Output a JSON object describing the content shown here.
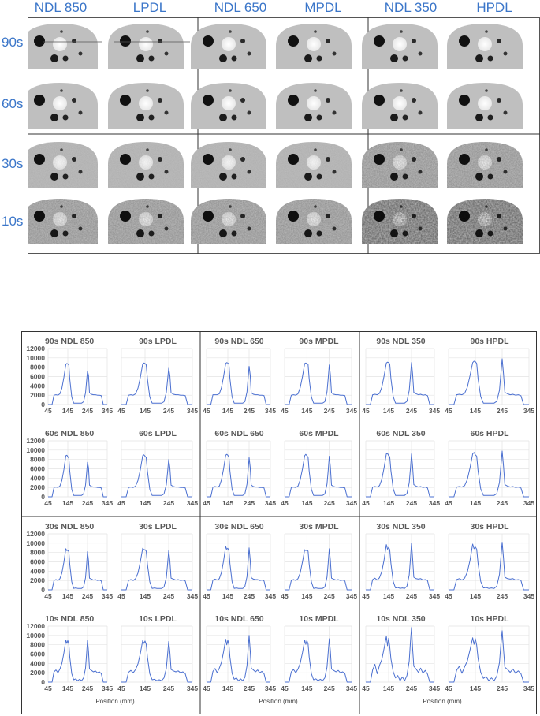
{
  "phantom_panel": {
    "columns": [
      "NDL 850",
      "LPDL",
      "NDL 650",
      "MPDL",
      "NDL 350",
      "HPDL"
    ],
    "rows": [
      "90s",
      "60s",
      "30s",
      "10s"
    ]
  },
  "chart_data": {
    "type": "line",
    "x_ticks": [
      "45",
      "145",
      "245",
      "345"
    ],
    "y_ticks": [
      "0",
      "2000",
      "4000",
      "6000",
      "8000",
      "10000",
      "12000"
    ],
    "xlabel": "Position (mm)",
    "ylim": [
      0,
      12000
    ],
    "xlim": [
      45,
      345
    ],
    "x": [
      45,
      55,
      65,
      75,
      85,
      95,
      105,
      115,
      125,
      135,
      140,
      145,
      150,
      155,
      165,
      175,
      185,
      195,
      205,
      215,
      225,
      235,
      240,
      245,
      250,
      255,
      265,
      275,
      285,
      295,
      305,
      315,
      325,
      335,
      345
    ],
    "panels": [
      {
        "title": "90s NDL 850",
        "values": [
          0,
          0,
          0,
          2000,
          2100,
          2000,
          2300,
          3500,
          5800,
          8600,
          8800,
          8700,
          8500,
          5500,
          1600,
          300,
          300,
          300,
          300,
          300,
          600,
          2500,
          5000,
          7200,
          6200,
          2500,
          2200,
          2100,
          2100,
          2000,
          2000,
          1900,
          0,
          0,
          0
        ]
      },
      {
        "title": "90s LPDL",
        "values": [
          0,
          0,
          0,
          2000,
          2100,
          2000,
          2300,
          3500,
          5800,
          8700,
          8900,
          8800,
          8500,
          5500,
          1600,
          300,
          300,
          300,
          300,
          300,
          600,
          2600,
          5200,
          7800,
          6200,
          2500,
          2200,
          2100,
          2100,
          2000,
          2000,
          1900,
          0,
          0,
          0
        ]
      },
      {
        "title": "90s NDL 650",
        "values": [
          0,
          0,
          0,
          2100,
          2100,
          2100,
          2300,
          3600,
          6000,
          8800,
          9000,
          8900,
          8600,
          5500,
          1600,
          300,
          300,
          300,
          300,
          300,
          600,
          2700,
          5400,
          8200,
          6300,
          2500,
          2200,
          2100,
          2100,
          2000,
          2000,
          1900,
          0,
          0,
          0
        ]
      },
      {
        "title": "90s MPDL",
        "values": [
          0,
          0,
          0,
          2000,
          2100,
          2000,
          2300,
          3600,
          6000,
          8800,
          8900,
          8800,
          8600,
          5500,
          1600,
          300,
          300,
          300,
          300,
          300,
          600,
          2700,
          5600,
          8500,
          6400,
          2500,
          2200,
          2100,
          2100,
          2000,
          2000,
          1900,
          0,
          0,
          0
        ]
      },
      {
        "title": "90s NDL 350",
        "values": [
          0,
          0,
          0,
          2100,
          2200,
          2100,
          2400,
          3700,
          6100,
          8900,
          9100,
          9000,
          8700,
          5600,
          1700,
          300,
          300,
          300,
          300,
          300,
          700,
          3000,
          6000,
          9000,
          6500,
          2600,
          2300,
          2100,
          2200,
          2000,
          2100,
          1900,
          0,
          0,
          0
        ]
      },
      {
        "title": "90s HPDL",
        "values": [
          0,
          0,
          0,
          2100,
          2200,
          2100,
          2400,
          3700,
          6200,
          9000,
          9300,
          9200,
          8800,
          5600,
          1700,
          300,
          300,
          300,
          300,
          300,
          700,
          3100,
          6500,
          9800,
          6600,
          2600,
          2300,
          2100,
          2200,
          2000,
          2100,
          1900,
          0,
          0,
          0
        ]
      },
      {
        "title": "60s NDL 850",
        "values": [
          0,
          0,
          0,
          2000,
          2100,
          2000,
          2300,
          3500,
          5800,
          8800,
          8900,
          8600,
          8300,
          5500,
          1600,
          300,
          300,
          300,
          300,
          300,
          600,
          2500,
          5000,
          7400,
          6200,
          2500,
          2200,
          2100,
          2100,
          2000,
          2000,
          1900,
          0,
          0,
          0
        ]
      },
      {
        "title": "60s LPDL",
        "values": [
          0,
          0,
          0,
          2000,
          2100,
          2000,
          2300,
          3500,
          5800,
          8800,
          9000,
          8700,
          8400,
          5500,
          1600,
          300,
          300,
          300,
          300,
          300,
          600,
          2600,
          5200,
          8000,
          6200,
          2500,
          2200,
          2100,
          2100,
          2000,
          2000,
          1900,
          0,
          0,
          0
        ]
      },
      {
        "title": "60s NDL 650",
        "values": [
          0,
          0,
          0,
          2100,
          2200,
          2100,
          2300,
          3600,
          6000,
          8900,
          9100,
          8900,
          8500,
          5500,
          1600,
          300,
          300,
          300,
          300,
          300,
          600,
          2700,
          5400,
          8400,
          6300,
          2500,
          2200,
          2100,
          2100,
          2000,
          2000,
          1900,
          0,
          0,
          0
        ]
      },
      {
        "title": "60s MPDL",
        "values": [
          0,
          0,
          0,
          2000,
          2100,
          2000,
          2300,
          3600,
          6000,
          8800,
          9100,
          8800,
          8500,
          5500,
          1600,
          300,
          300,
          300,
          300,
          300,
          600,
          2700,
          5600,
          8700,
          6400,
          2500,
          2200,
          2100,
          2100,
          2000,
          2000,
          1900,
          0,
          0,
          0
        ]
      },
      {
        "title": "60s NDL 350",
        "values": [
          0,
          0,
          0,
          2100,
          2200,
          2100,
          2400,
          3700,
          6200,
          9200,
          9300,
          8800,
          8600,
          5600,
          1700,
          300,
          300,
          300,
          300,
          300,
          700,
          3000,
          6000,
          9200,
          6500,
          2600,
          2300,
          2100,
          2200,
          2000,
          2100,
          1900,
          0,
          0,
          0
        ]
      },
      {
        "title": "60s HPDL",
        "values": [
          0,
          0,
          0,
          2100,
          2200,
          2100,
          2400,
          3700,
          6200,
          9200,
          9500,
          9000,
          8700,
          5600,
          1700,
          300,
          300,
          300,
          300,
          300,
          700,
          3100,
          6500,
          9800,
          6600,
          2600,
          2300,
          2100,
          2200,
          2000,
          2100,
          1900,
          0,
          0,
          0
        ]
      },
      {
        "title": "30s NDL 850",
        "values": [
          0,
          0,
          0,
          2000,
          2200,
          2000,
          2400,
          3600,
          5900,
          8800,
          8400,
          8500,
          8200,
          5500,
          1700,
          300,
          400,
          300,
          300,
          300,
          600,
          2600,
          5300,
          8200,
          6200,
          2500,
          2300,
          2100,
          2200,
          2000,
          2100,
          1900,
          0,
          0,
          0
        ]
      },
      {
        "title": "30s LPDL",
        "values": [
          0,
          0,
          0,
          2000,
          2200,
          2000,
          2400,
          3600,
          6000,
          8900,
          8600,
          8600,
          8300,
          5500,
          1700,
          300,
          400,
          300,
          300,
          300,
          600,
          2600,
          5400,
          8400,
          6200,
          2500,
          2300,
          2100,
          2200,
          2000,
          2100,
          1900,
          0,
          0,
          0
        ]
      },
      {
        "title": "30s NDL 650",
        "values": [
          0,
          0,
          0,
          2100,
          2300,
          2100,
          2400,
          3700,
          6200,
          9300,
          8700,
          8900,
          8400,
          5600,
          1700,
          300,
          400,
          300,
          300,
          300,
          700,
          2800,
          5800,
          9000,
          6400,
          2600,
          2300,
          2200,
          2200,
          2000,
          2100,
          1900,
          0,
          0,
          0
        ]
      },
      {
        "title": "30s MPDL",
        "values": [
          0,
          0,
          0,
          2000,
          2200,
          2000,
          2400,
          3600,
          6000,
          8600,
          8400,
          8500,
          8300,
          5500,
          1700,
          300,
          400,
          300,
          300,
          300,
          600,
          2700,
          5700,
          8800,
          6300,
          2500,
          2300,
          2100,
          2200,
          2000,
          2100,
          1900,
          0,
          0,
          0
        ]
      },
      {
        "title": "30s NDL 350",
        "values": [
          0,
          0,
          0,
          2200,
          2500,
          2100,
          2600,
          3900,
          6400,
          9700,
          8700,
          9100,
          8600,
          5700,
          1800,
          400,
          500,
          300,
          400,
          300,
          800,
          3200,
          6500,
          10000,
          6700,
          2700,
          2400,
          2300,
          2400,
          2100,
          2200,
          2000,
          0,
          0,
          0
        ]
      },
      {
        "title": "30s HPDL",
        "values": [
          0,
          0,
          0,
          2200,
          2400,
          2100,
          2500,
          3800,
          6300,
          9800,
          8800,
          9200,
          8700,
          5700,
          1800,
          400,
          500,
          300,
          400,
          300,
          800,
          3300,
          6800,
          10200,
          6800,
          2700,
          2400,
          2300,
          2400,
          2100,
          2200,
          2000,
          0,
          0,
          0
        ]
      },
      {
        "title": "10s NDL 850",
        "values": [
          0,
          0,
          0,
          2200,
          2600,
          2000,
          2800,
          4000,
          6200,
          9000,
          8300,
          8900,
          8200,
          5400,
          1800,
          500,
          700,
          300,
          600,
          300,
          900,
          3000,
          6000,
          9000,
          6500,
          2800,
          2500,
          2200,
          2400,
          2000,
          2200,
          1800,
          0,
          0,
          0
        ]
      },
      {
        "title": "10s LPDL",
        "values": [
          0,
          0,
          0,
          2100,
          2500,
          2000,
          2700,
          3900,
          6100,
          8900,
          8300,
          8800,
          8100,
          5400,
          1800,
          500,
          600,
          300,
          500,
          300,
          900,
          2900,
          5800,
          8700,
          6400,
          2700,
          2400,
          2200,
          2400,
          2000,
          2200,
          1800,
          0,
          0,
          0
        ]
      },
      {
        "title": "10s NDL 650",
        "values": [
          0,
          0,
          0,
          2300,
          2900,
          2000,
          3000,
          4200,
          6500,
          9200,
          8000,
          9000,
          8000,
          5300,
          1900,
          600,
          900,
          300,
          700,
          300,
          1000,
          3500,
          6800,
          10000,
          6800,
          3000,
          2600,
          2200,
          2600,
          2000,
          2300,
          1800,
          0,
          0,
          0
        ]
      },
      {
        "title": "10s MPDL",
        "values": [
          0,
          0,
          0,
          2200,
          2700,
          2000,
          2800,
          4000,
          6300,
          9000,
          8100,
          8900,
          8200,
          5400,
          1800,
          500,
          700,
          300,
          600,
          300,
          900,
          3200,
          6300,
          9300,
          6600,
          2800,
          2500,
          2200,
          2500,
          2000,
          2200,
          1800,
          0,
          0,
          0
        ]
      },
      {
        "title": "10s NDL 350",
        "values": [
          0,
          0,
          0,
          2600,
          3800,
          1800,
          3600,
          4800,
          7200,
          9800,
          7800,
          9400,
          7600,
          5000,
          2200,
          900,
          1400,
          300,
          1100,
          300,
          1400,
          4500,
          8500,
          11700,
          7200,
          3400,
          2800,
          2100,
          3000,
          1900,
          2500,
          1700,
          0,
          0,
          0
        ]
      },
      {
        "title": "10s HPDL",
        "values": [
          0,
          0,
          0,
          2500,
          3400,
          1900,
          3300,
          4500,
          6900,
          9500,
          8100,
          9300,
          7900,
          5100,
          2100,
          800,
          1200,
          300,
          900,
          300,
          1300,
          4200,
          8000,
          11000,
          7000,
          3200,
          2700,
          2100,
          2800,
          1900,
          2400,
          1800,
          0,
          0,
          0
        ]
      }
    ]
  }
}
